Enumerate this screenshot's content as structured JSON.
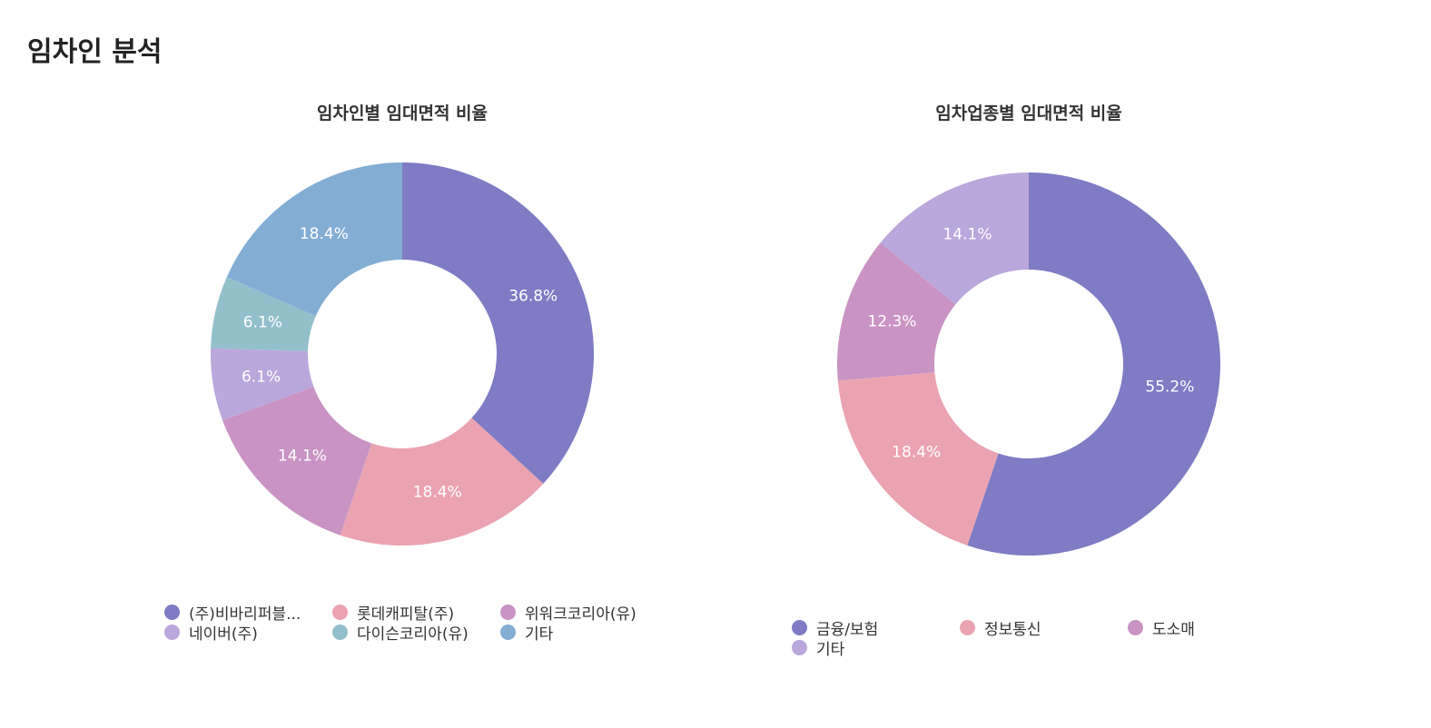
{
  "page": {
    "title": "임차인 분석"
  },
  "chart_data": [
    {
      "type": "pie",
      "donut": true,
      "title": "임차인별 임대면적 비율",
      "categories": [
        "(주)비바리퍼블...",
        "롯데캐피탈(주)",
        "위워크코리아(유)",
        "네이버(주)",
        "다이슨코리아(유)",
        "기타"
      ],
      "values": [
        36.8,
        18.4,
        14.1,
        6.1,
        6.1,
        18.4
      ],
      "labels": [
        "36.8%",
        "18.4%",
        "14.1%",
        "6.1%",
        "6.1%",
        "18.4%"
      ],
      "colors": [
        "#7f7bc4",
        "#eba3b2",
        "#c994c4",
        "#baa7db",
        "#93bfcb",
        "#84add4"
      ],
      "legend_position": "bottom"
    },
    {
      "type": "pie",
      "donut": true,
      "title": "임차업종별 임대면적 비율",
      "categories": [
        "금융/보험",
        "정보통신",
        "도소매",
        "기타"
      ],
      "values": [
        55.2,
        18.4,
        12.3,
        14.1
      ],
      "labels": [
        "55.2%",
        "18.4%",
        "12.3%",
        "14.1%"
      ],
      "colors": [
        "#7f7bc4",
        "#eba3b2",
        "#c994c4",
        "#baa7db"
      ],
      "legend_position": "bottom"
    }
  ]
}
